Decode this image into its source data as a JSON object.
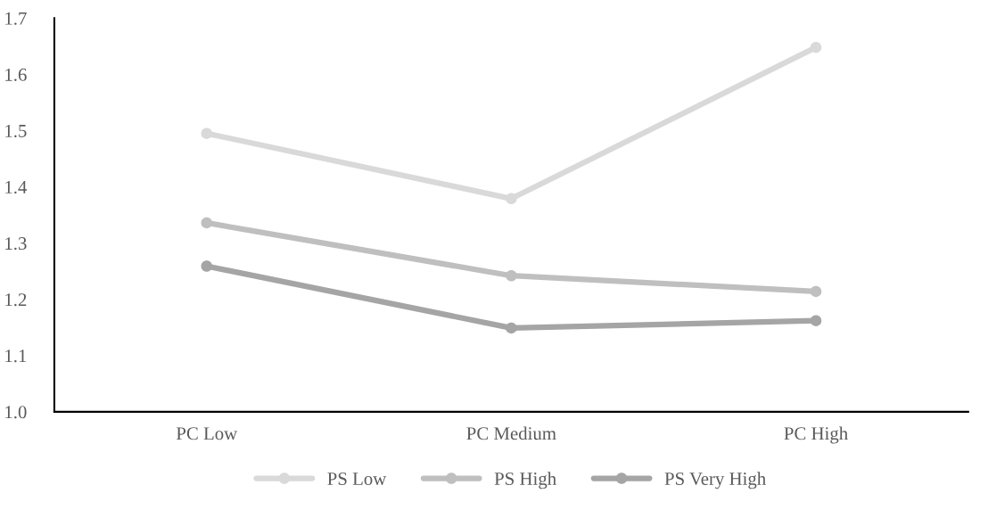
{
  "chart_data": {
    "type": "line",
    "categories": [
      "PC Low",
      "PC Medium",
      "PC High"
    ],
    "series": [
      {
        "name": "PS Low",
        "color": "#d9d9d9",
        "values": [
          1.495,
          1.379,
          1.648
        ]
      },
      {
        "name": "PS High",
        "color": "#bfbfbf",
        "values": [
          1.336,
          1.242,
          1.214
        ]
      },
      {
        "name": "PS Very High",
        "color": "#a5a5a5",
        "values": [
          1.259,
          1.149,
          1.162
        ]
      }
    ],
    "ylim": [
      1.0,
      1.7
    ],
    "yticks": [
      {
        "value": 1.0,
        "label": "1.0"
      },
      1.1,
      1.2,
      1.3,
      1.4,
      1.5,
      1.6,
      1.7
    ],
    "marker": "circle",
    "line_style": "solid",
    "grid": false,
    "legend": "bottom"
  }
}
